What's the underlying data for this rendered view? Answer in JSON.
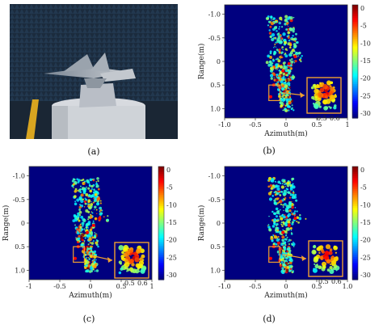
{
  "captions": {
    "a": "(a)",
    "b": "(b)",
    "c": "(c)",
    "d": "(d)"
  },
  "panel_b": {
    "xlabel": "Azimuth(m)",
    "ylabel": "Range(m)",
    "xticks": [
      "-1.0",
      "-0.5",
      "0",
      "0.5",
      "1"
    ],
    "yticks": [
      "-1.0",
      "-0.5",
      "0",
      "0.5",
      "1.0"
    ],
    "cbar_ticks": [
      "0",
      "-5",
      "-10",
      "-15",
      "-20",
      "-25",
      "-30"
    ],
    "inset_ticks": [
      "0.5",
      "0.6"
    ]
  },
  "panel_c": {
    "xlabel": "Azimuth(m)",
    "ylabel": "Range(m)",
    "xticks": [
      "-1",
      "-0.5",
      "0",
      "0.5",
      "1"
    ],
    "yticks": [
      "-1.0",
      "-0.5",
      "0",
      "0.5",
      "1.0"
    ],
    "cbar_ticks": [
      "0",
      "-5",
      "-10",
      "-15",
      "-20",
      "-25",
      "-30"
    ],
    "inset_ticks": [
      "0.5",
      "0.6"
    ]
  },
  "panel_d": {
    "xlabel": "Azimuth(m)",
    "ylabel": "Range(m)",
    "xticks": [
      "-1.0",
      "-0.5",
      "0",
      "0.5",
      "1.0"
    ],
    "yticks": [
      "-1.0",
      "-0.5",
      "0",
      "0.5",
      "1.0"
    ],
    "cbar_ticks": [
      "0",
      "-5",
      "-10",
      "-15",
      "-20",
      "-25",
      "-30"
    ],
    "inset_ticks": [
      "0.5",
      "0.6"
    ]
  },
  "colors": {
    "background": "#00007f",
    "highlight": "#f0a030"
  }
}
